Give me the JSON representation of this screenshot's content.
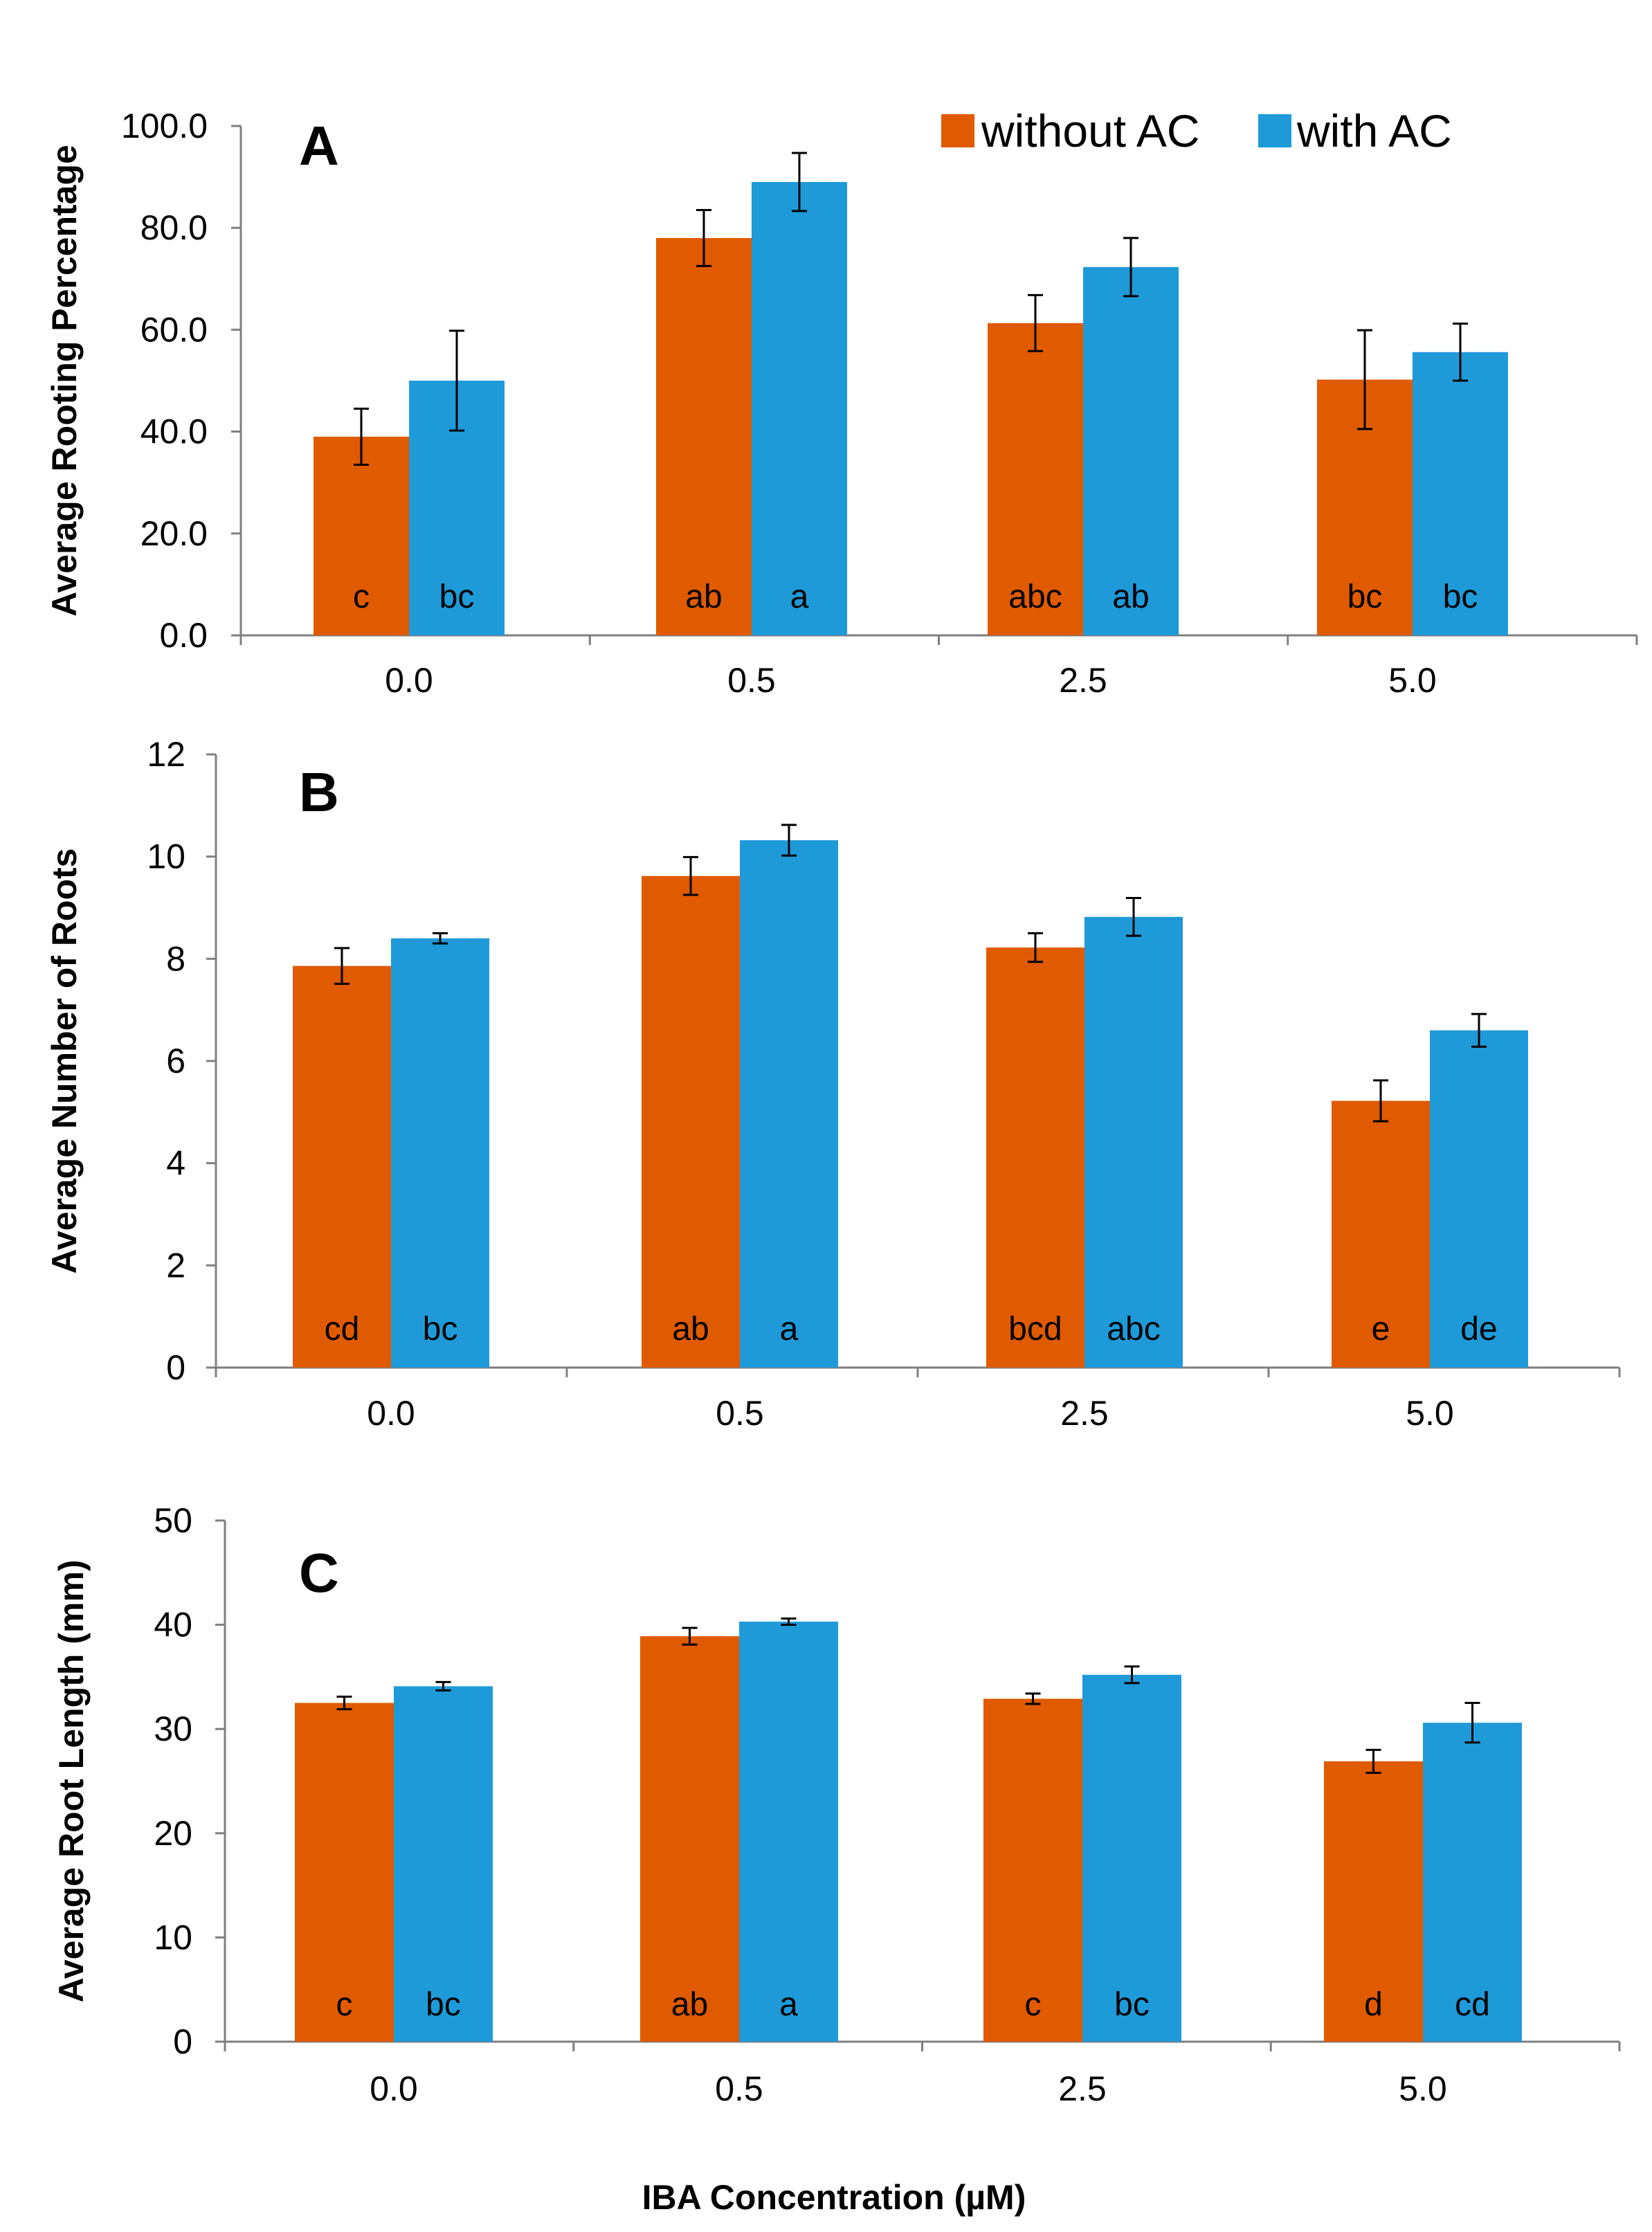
{
  "colors": {
    "without_ac": "#e05a00",
    "with_ac": "#1f9ad9"
  },
  "legend": [
    {
      "label": "without AC",
      "color": "#e05a00"
    },
    {
      "label": "with AC",
      "color": "#1f9ad9"
    }
  ],
  "chart_data": [
    {
      "type": "bar",
      "panel": "A",
      "title": "",
      "ylabel": "Average Rooting Percentage",
      "xlabel": "",
      "categories": [
        "0.0",
        "0.5",
        "2.5",
        "5.0"
      ],
      "ylim": [
        0,
        100
      ],
      "yticks": [
        "0.0",
        "20.0",
        "40.0",
        "60.0",
        "80.0",
        "100.0"
      ],
      "series": [
        {
          "name": "without AC",
          "values": [
            39,
            78,
            61.3,
            50.2
          ],
          "errors": [
            5.5,
            5.5,
            5.5,
            9.7
          ],
          "letters": [
            "c",
            "ab",
            "abc",
            "bc"
          ]
        },
        {
          "name": "with AC",
          "values": [
            50,
            89,
            72.3,
            55.6
          ],
          "errors": [
            9.8,
            5.7,
            5.7,
            5.6
          ],
          "letters": [
            "bc",
            "a",
            "ab",
            "bc"
          ]
        }
      ]
    },
    {
      "type": "bar",
      "panel": "B",
      "title": "",
      "ylabel": "Average Number of Roots",
      "xlabel": "",
      "categories": [
        "0.0",
        "0.5",
        "2.5",
        "5.0"
      ],
      "ylim": [
        0,
        12
      ],
      "yticks": [
        "0",
        "2",
        "4",
        "6",
        "8",
        "10",
        "12"
      ],
      "series": [
        {
          "name": "without AC",
          "values": [
            7.86,
            9.62,
            8.22,
            5.22
          ],
          "errors": [
            0.35,
            0.37,
            0.28,
            0.4
          ],
          "letters": [
            "cd",
            "ab",
            "bcd",
            "e"
          ]
        },
        {
          "name": "with AC",
          "values": [
            8.4,
            10.32,
            8.82,
            6.6
          ],
          "errors": [
            0.1,
            0.3,
            0.37,
            0.32
          ],
          "letters": [
            "bc",
            "a",
            "abc",
            "de"
          ]
        }
      ]
    },
    {
      "type": "bar",
      "panel": "C",
      "title": "",
      "ylabel": "Average Root Length (mm)",
      "xlabel": "IBA Concentration (µM)",
      "categories": [
        "0.0",
        "0.5",
        "2.5",
        "5.0"
      ],
      "ylim": [
        0,
        50
      ],
      "yticks": [
        "0",
        "10",
        "20",
        "30",
        "40",
        "50"
      ],
      "series": [
        {
          "name": "without AC",
          "values": [
            32.5,
            38.9,
            32.9,
            26.9
          ],
          "errors": [
            0.6,
            0.8,
            0.5,
            1.1
          ],
          "letters": [
            "c",
            "ab",
            "c",
            "d"
          ]
        },
        {
          "name": "with AC",
          "values": [
            34.1,
            40.3,
            35.2,
            30.6
          ],
          "errors": [
            0.4,
            0.3,
            0.8,
            1.9
          ],
          "letters": [
            "bc",
            "a",
            "bc",
            "cd"
          ]
        }
      ]
    }
  ]
}
